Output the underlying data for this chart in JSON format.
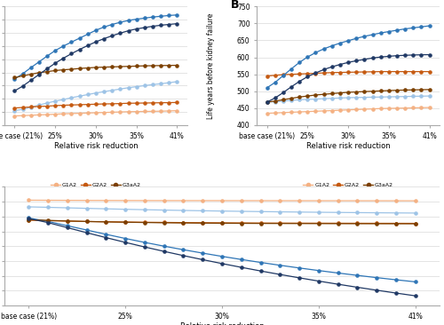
{
  "x_values": [
    0,
    0.2,
    0.4,
    0.6,
    0.8,
    1.0,
    1.2,
    1.4,
    1.6,
    1.8,
    2.0,
    2.2,
    2.4,
    2.6,
    2.8,
    3.0,
    3.2,
    3.4,
    3.6,
    3.8,
    4.0
  ],
  "colors": {
    "G1A2": "#f4b183",
    "G1A3": "#9dc3e6",
    "G2A2": "#c55a11",
    "G2A3": "#2e75b6",
    "G3aA2": "#7b3f00",
    "G3aA3": "#1f3864"
  },
  "panel_A": {
    "G1A2": [
      3.5,
      3.6,
      3.75,
      3.9,
      4.0,
      4.15,
      4.3,
      4.4,
      4.5,
      4.6,
      4.7,
      4.8,
      4.9,
      5.0,
      5.1,
      5.15,
      5.2,
      5.25,
      5.3,
      5.4,
      5.5
    ],
    "G1A3": [
      5.5,
      6.0,
      6.8,
      7.6,
      8.4,
      9.1,
      9.7,
      10.4,
      11.0,
      11.6,
      12.2,
      12.7,
      13.2,
      13.7,
      14.2,
      14.6,
      15.0,
      15.4,
      15.7,
      16.1,
      16.5
    ],
    "G2A2": [
      6.5,
      6.7,
      6.9,
      7.1,
      7.2,
      7.4,
      7.55,
      7.65,
      7.75,
      7.85,
      7.95,
      8.05,
      8.1,
      8.2,
      8.3,
      8.35,
      8.4,
      8.45,
      8.5,
      8.55,
      8.6
    ],
    "G2A3": [
      17.5,
      19.5,
      21.8,
      24.0,
      26.2,
      28.3,
      30.0,
      31.5,
      33.0,
      34.5,
      36.0,
      37.2,
      38.2,
      39.0,
      39.7,
      40.2,
      40.6,
      41.0,
      41.3,
      41.6,
      41.8
    ],
    "G3aA2": [
      18.0,
      18.7,
      19.3,
      19.9,
      20.3,
      20.7,
      21.0,
      21.2,
      21.5,
      21.7,
      21.9,
      22.0,
      22.1,
      22.2,
      22.3,
      22.4,
      22.5,
      22.55,
      22.6,
      22.65,
      22.7
    ],
    "G3aA3": [
      13.0,
      14.8,
      17.0,
      19.2,
      21.4,
      23.5,
      25.4,
      27.1,
      28.7,
      30.2,
      31.6,
      32.8,
      33.9,
      34.9,
      35.8,
      36.5,
      37.0,
      37.5,
      37.9,
      38.2,
      38.5
    ]
  },
  "panel_B": {
    "G1A2": [
      435,
      436,
      437,
      438,
      439,
      440,
      441,
      442,
      443,
      444,
      445,
      446,
      447,
      448,
      449,
      449.5,
      450,
      450.5,
      451,
      451.5,
      452
    ],
    "G1A3": [
      468,
      469,
      471,
      473,
      475,
      476,
      477,
      478,
      479,
      480,
      481,
      481.5,
      482,
      482.5,
      483,
      483.5,
      484,
      484.5,
      485,
      485.5,
      486
    ],
    "G2A2": [
      545,
      547,
      549,
      550,
      551,
      552,
      553,
      554,
      555,
      555.5,
      556,
      556.5,
      557,
      557.5,
      558,
      558,
      558,
      558,
      558,
      558,
      558
    ],
    "G2A3": [
      510,
      526,
      546,
      566,
      585,
      601,
      614,
      625,
      634,
      642,
      649,
      656,
      662,
      667,
      672,
      676,
      680,
      684,
      687,
      690,
      693
    ],
    "G3aA2": [
      468,
      471,
      475,
      479,
      483,
      486,
      489,
      491,
      493,
      495,
      497,
      498,
      499,
      500,
      501,
      502,
      503,
      503.5,
      504,
      504.5,
      505
    ],
    "G3aA3": [
      468,
      480,
      496,
      513,
      529,
      543,
      554,
      564,
      572,
      579,
      585,
      590,
      594,
      598,
      601,
      603,
      605,
      606,
      607,
      607.5,
      608
    ]
  },
  "panel_C": {
    "G1A2": [
      6100,
      6095,
      6090,
      6085,
      6082,
      6079,
      6077,
      6075,
      6074,
      6073,
      6072,
      6071,
      6070,
      6069,
      6068,
      6067,
      6066,
      6065,
      6064,
      6063,
      6062
    ],
    "G1A3": [
      5650,
      5620,
      5585,
      5550,
      5518,
      5487,
      5460,
      5434,
      5410,
      5388,
      5368,
      5349,
      5332,
      5316,
      5301,
      5287,
      5275,
      5263,
      5253,
      5243,
      5234
    ],
    "G2A2": [
      4750,
      4720,
      4690,
      4665,
      4645,
      4628,
      4613,
      4601,
      4590,
      4581,
      4573,
      4567,
      4561,
      4557,
      4552,
      4549,
      4546,
      4543,
      4541,
      4540,
      4538
    ],
    "G2A3": [
      4900,
      4670,
      4380,
      4090,
      3800,
      3520,
      3255,
      3002,
      2762,
      2532,
      2312,
      2103,
      1903,
      1712,
      1530,
      1356,
      1190,
      1031,
      879,
      734,
      595
    ],
    "G3aA2": [
      4780,
      4740,
      4700,
      4665,
      4638,
      4615,
      4596,
      4580,
      4567,
      4556,
      4547,
      4540,
      4534,
      4530,
      4526,
      4522,
      4519,
      4517,
      4515,
      4513,
      4511
    ],
    "G3aA3": [
      4870,
      4590,
      4250,
      3910,
      3578,
      3256,
      2947,
      2650,
      2365,
      2091,
      1827,
      1573,
      1328,
      1092,
      865,
      646,
      434,
      229,
      31,
      -162,
      -348
    ]
  },
  "panel_A_ylim": [
    0,
    45
  ],
  "panel_A_yticks": [
    0,
    5,
    10,
    15,
    20,
    25,
    30,
    35,
    40,
    45
  ],
  "panel_B_ylim": [
    400,
    750
  ],
  "panel_B_yticks": [
    400,
    450,
    500,
    550,
    600,
    650,
    700,
    750
  ],
  "panel_C_ylim": [
    -1000,
    7000
  ],
  "panel_C_yticks": [
    -1000,
    0,
    1000,
    2000,
    3000,
    4000,
    5000,
    6000,
    7000
  ],
  "xtick_positions": [
    0.0,
    1.0,
    2.0,
    3.0,
    4.0
  ],
  "xtick_major_labels": [
    "base case (21%)",
    "25%",
    "30%",
    "35%",
    "41%"
  ]
}
